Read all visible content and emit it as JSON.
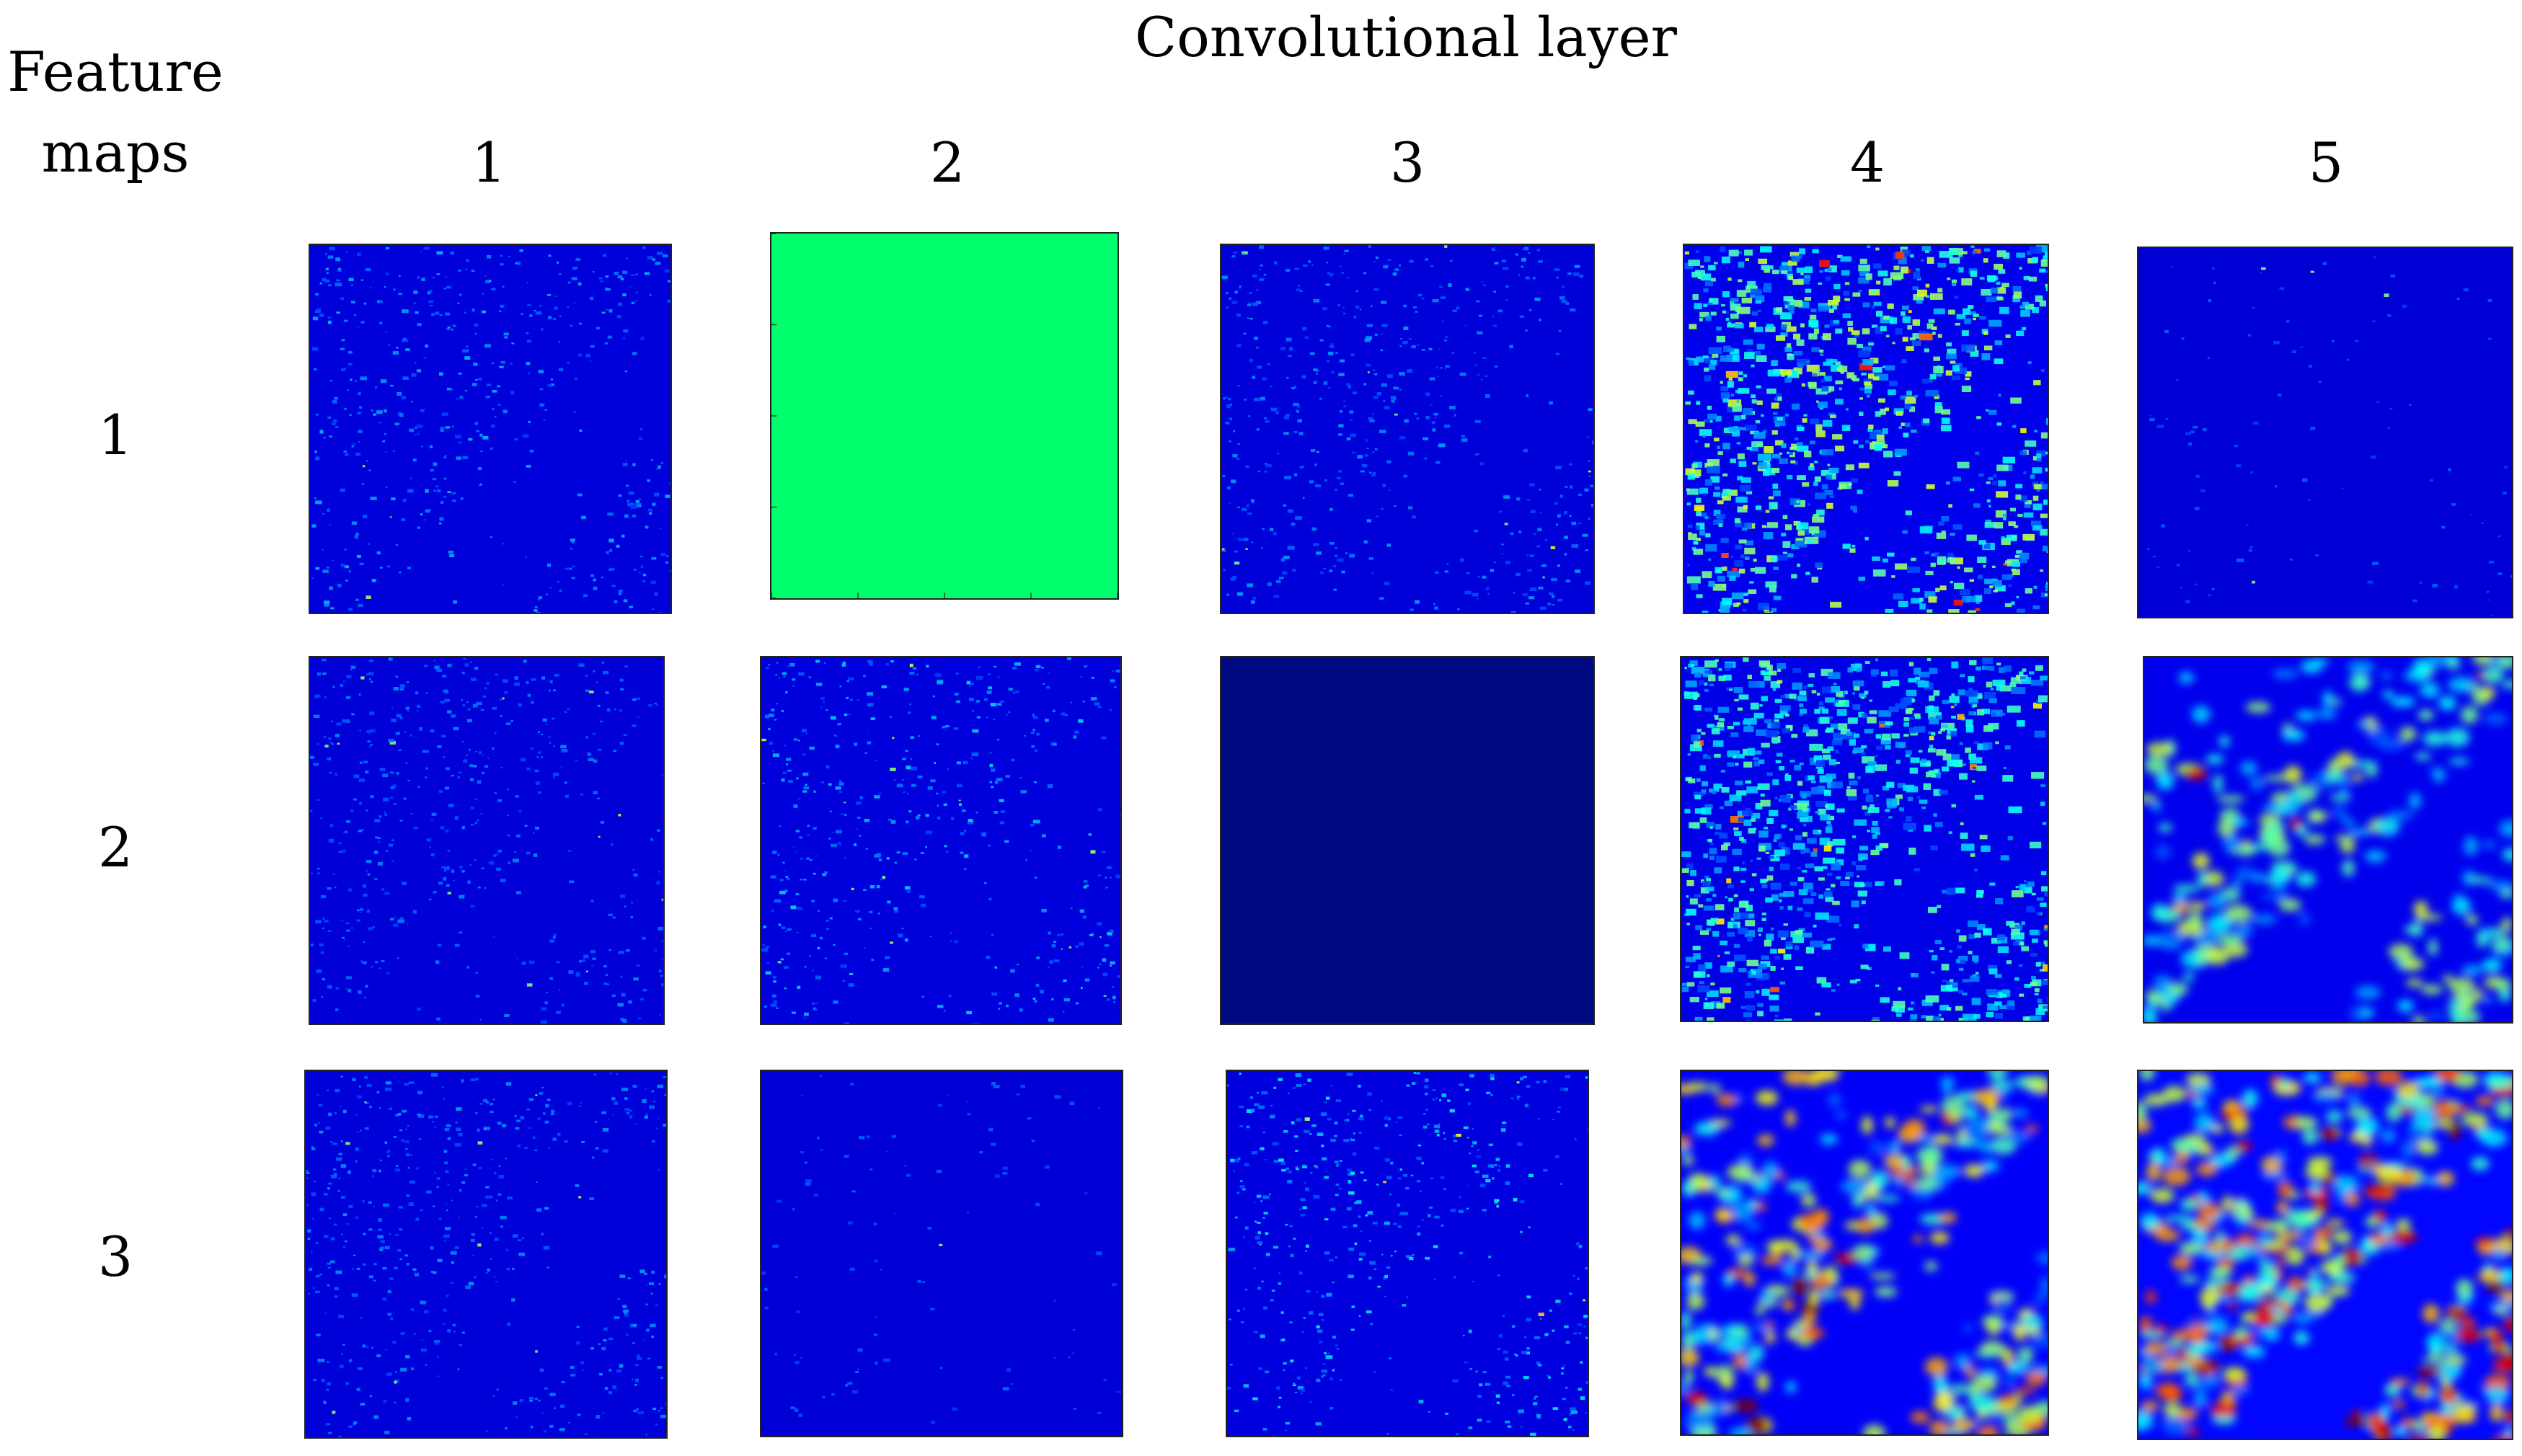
{
  "title": "Convolutional layer",
  "row_header": "Feature maps",
  "columns": [
    "1",
    "2",
    "3",
    "4",
    "5"
  ],
  "rows": [
    "1",
    "2",
    "3"
  ],
  "colormap": {
    "name": "jet",
    "low": "#00007f",
    "mid": "#00ff80",
    "high": "#ff0000"
  },
  "maps": [
    [
      {
        "activation": "sparse",
        "level": 0.15
      },
      {
        "activation": "uniform",
        "level": 0.55,
        "color": "#00ff6c"
      },
      {
        "activation": "sparse",
        "level": 0.12
      },
      {
        "activation": "dense",
        "level": 0.45
      },
      {
        "activation": "very-sparse",
        "level": 0.05
      }
    ],
    [
      {
        "activation": "sparse",
        "level": 0.1
      },
      {
        "activation": "sparse",
        "level": 0.18
      },
      {
        "activation": "uniform",
        "level": 0.0,
        "color": "#000a80"
      },
      {
        "activation": "dense",
        "level": 0.35
      },
      {
        "activation": "blobs",
        "level": 0.45
      }
    ],
    [
      {
        "activation": "sparse",
        "level": 0.12
      },
      {
        "activation": "very-sparse",
        "level": 0.06
      },
      {
        "activation": "sparse",
        "level": 0.22
      },
      {
        "activation": "blobs",
        "level": 0.65
      },
      {
        "activation": "blobs",
        "level": 0.85
      }
    ]
  ]
}
